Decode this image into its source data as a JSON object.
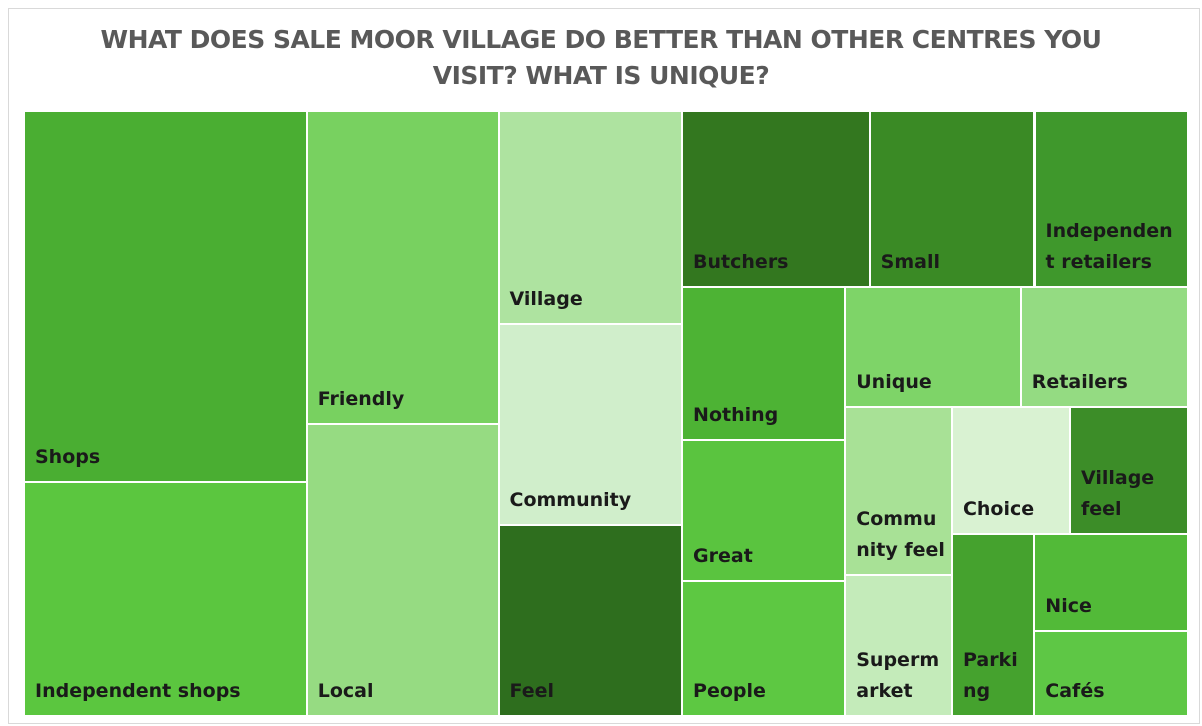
{
  "chart_data": {
    "type": "treemap",
    "title": "WHAT DOES SALE MOOR VILLAGE DO BETTER THAN OTHER CENTRES YOU VISIT? WHAT IS UNIQUE?",
    "categories": [
      "Shops",
      "Independent shops",
      "Friendly",
      "Local",
      "Village",
      "Community",
      "Feel",
      "Butchers",
      "Small",
      "Independent retailers",
      "Nothing",
      "Great",
      "People",
      "Unique",
      "Retailers",
      "Community feel",
      "Supermarket",
      "Choice",
      "Village feel",
      "Parking",
      "Nice",
      "Cafés"
    ],
    "values": [
      105,
      66,
      60,
      56,
      39,
      37,
      35,
      33,
      29,
      27,
      25,
      23,
      22,
      21,
      20,
      18,
      15,
      15,
      15,
      15,
      15,
      13
    ],
    "colors": [
      "#4aae32",
      "#5bc63f",
      "#78d160",
      "#96db82",
      "#aee3a0",
      "#d0eecb",
      "#2e6e1e",
      "#33771f",
      "#3a8a25",
      "#3f982c",
      "#4db334",
      "#5ac43f",
      "#5dc842",
      "#7ed468",
      "#94db82",
      "#a8e196",
      "#c4ebba",
      "#d9f2d2",
      "#3c8d28",
      "#45a22e",
      "#52ba38",
      "#5ec745"
    ]
  }
}
